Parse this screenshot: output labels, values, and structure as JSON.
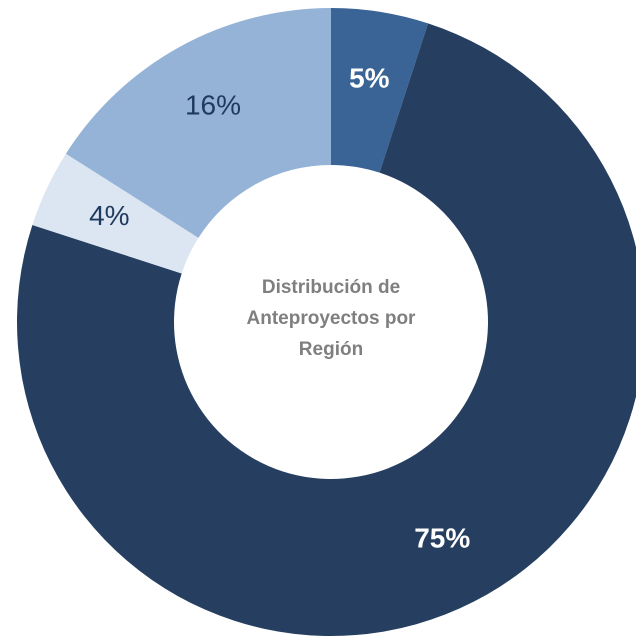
{
  "chart_data": {
    "type": "donut",
    "title": "Distribución de Anteproyectos por Región",
    "values": [
      5,
      75,
      4,
      16
    ],
    "value_labels": [
      "5%",
      "75%",
      "4%",
      "16%"
    ],
    "colors": [
      "#3a6496",
      "#263f61",
      "#dce6f2",
      "#95b3d7"
    ],
    "label_colors": [
      "#ffffff",
      "#ffffff",
      "#1f3a5f",
      "#1f3a5f"
    ]
  }
}
